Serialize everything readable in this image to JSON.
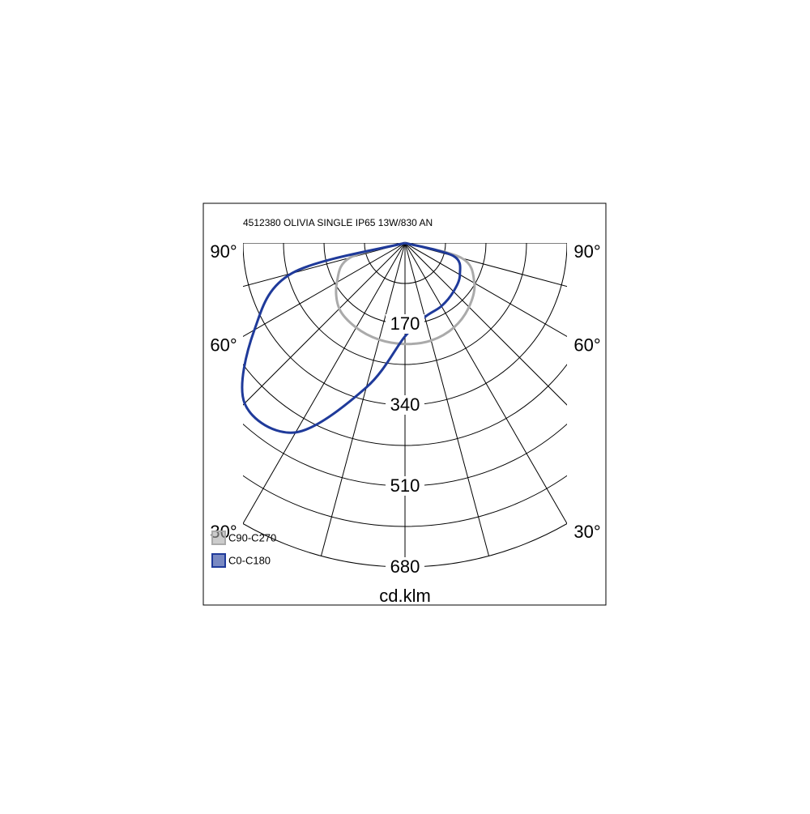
{
  "chart_data": {
    "type": "polar",
    "title": "4512380 OLIVIA SINGLE IP65 13W/830 AN",
    "unit_label": "cd.klm",
    "rlim": [
      0,
      680
    ],
    "rticks": [
      170,
      340,
      510,
      680
    ],
    "minor_rticks": [
      85,
      255,
      425,
      595
    ],
    "spokes": [
      -90,
      -75,
      -60,
      -45,
      -30,
      -15,
      0,
      15,
      30,
      45,
      60,
      75,
      90
    ],
    "angle_ticks": [
      {
        "value": 90,
        "label": "90°"
      },
      {
        "value": 60,
        "label": "60°"
      },
      {
        "value": 30,
        "label": "30°"
      }
    ],
    "angles": [
      -90,
      -75,
      -60,
      -45,
      -30,
      -15,
      0,
      15,
      30,
      45,
      60,
      75,
      90
    ],
    "series": [
      {
        "name": "C90-C270",
        "color": "#aaaaaa",
        "values": [
          0,
          120,
          165,
          195,
          205,
          210,
          212,
          212,
          205,
          190,
          168,
          124,
          0
        ]
      },
      {
        "name": "C0-C180",
        "color": "#1f3a9a",
        "values": [
          0,
          246,
          365,
          476,
          459,
          314,
          196,
          161,
          153,
          144,
          133,
          105,
          0
        ]
      }
    ]
  }
}
